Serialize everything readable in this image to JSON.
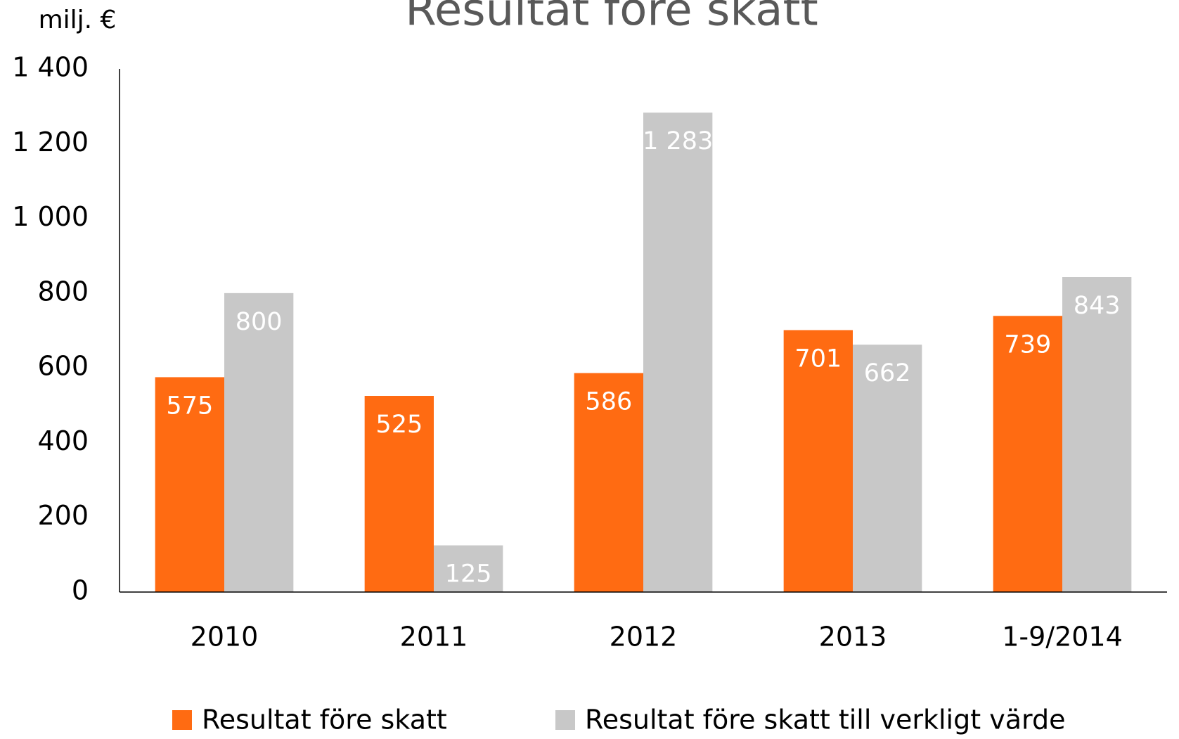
{
  "chart_data": {
    "type": "bar",
    "title": "Resultat före skatt",
    "y_label": "milj. €",
    "categories": [
      "2010",
      "2011",
      "2012",
      "2013",
      "1-9/2014"
    ],
    "series": [
      {
        "name": "Resultat före skatt",
        "color": "#ff6b12",
        "values": [
          575,
          525,
          586,
          701,
          739
        ]
      },
      {
        "name": "Resultat före skatt till verkligt värde",
        "color": "#c8c8c8",
        "values": [
          800,
          125,
          1283,
          662,
          843
        ],
        "value_labels": [
          "800",
          "125",
          "1 283",
          "662",
          "843"
        ]
      }
    ],
    "ylim": [
      0,
      1400
    ],
    "yticks": [
      0,
      200,
      400,
      600,
      800,
      {
        "value": 1000,
        "label": "1 000"
      },
      {
        "value": 1200,
        "label": "1 200"
      },
      {
        "value": 1400,
        "label": "1 400"
      }
    ],
    "grid": false,
    "legend": "bottom"
  }
}
